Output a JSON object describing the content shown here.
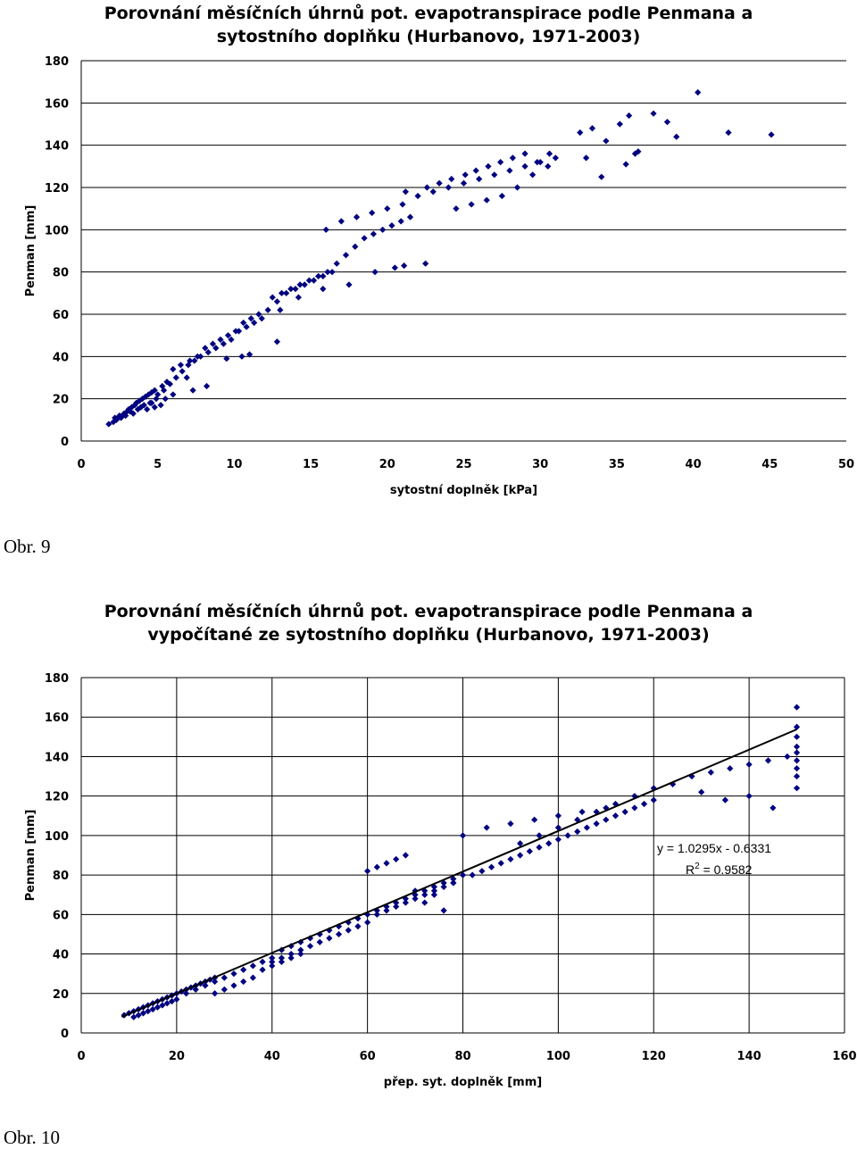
{
  "chart_data": [
    {
      "type": "scatter",
      "title_line1": "Porovnání měsíčních úhrnů pot. evapotranspirace podle Penmana a",
      "title_line2": "sytostního doplňku (Hurbanovo, 1971-2003)",
      "xlabel": "sytostní doplněk [kPa]",
      "ylabel": "Penman [mm]",
      "xlim": [
        0,
        50
      ],
      "ylim": [
        0,
        180
      ],
      "xticks": [
        "0",
        "5",
        "10",
        "15",
        "20",
        "25",
        "30",
        "35",
        "40",
        "45",
        "50"
      ],
      "yticks": [
        "0",
        "20",
        "40",
        "60",
        "80",
        "100",
        "120",
        "140",
        "160",
        "180"
      ],
      "grid": "horizontal",
      "marker_color": "#000080",
      "series": [
        {
          "x": [
            1.8,
            2.1,
            2.3,
            2.5,
            2.6,
            2.8,
            3.0,
            3.1,
            3.3,
            3.5,
            3.6,
            3.8,
            4.0,
            4.2,
            4.4,
            4.6,
            4.8,
            5.0,
            5.3,
            5.6,
            2.2,
            2.7,
            3.2,
            3.7,
            4.1,
            4.5,
            4.9,
            5.4,
            5.8,
            6.2,
            6.6,
            7.0,
            7.4,
            7.8,
            8.3,
            8.8,
            9.3,
            9.8,
            10.3,
            10.8,
            11.3,
            11.8,
            6.0,
            6.5,
            7.1,
            7.6,
            8.1,
            8.6,
            9.1,
            9.6,
            10.1,
            10.6,
            11.1,
            11.6,
            12.2,
            12.8,
            13.4,
            14.0,
            14.6,
            15.2,
            15.8,
            16.4,
            12.5,
            13.1,
            13.7,
            14.3,
            14.9,
            15.5,
            16.1,
            16.7,
            17.3,
            17.9,
            18.5,
            19.1,
            19.7,
            20.3,
            20.9,
            21.5,
            16.0,
            17.0,
            18.0,
            19.0,
            20.0,
            21.0,
            22.0,
            23.0,
            24.0,
            25.0,
            21.2,
            22.6,
            23.4,
            24.2,
            25.1,
            25.8,
            26.6,
            27.4,
            28.2,
            29.0,
            29.8,
            30.6,
            26.0,
            27.0,
            28.0,
            29.0,
            30.0,
            31.0,
            24.5,
            25.5,
            26.5,
            27.5,
            28.5,
            29.5,
            30.5,
            32.6,
            33.4,
            34.3,
            35.2,
            35.8,
            36.2,
            37.4,
            38.3,
            38.9,
            40.3,
            42.3,
            45.1,
            33.0,
            34.0,
            35.6,
            36.4,
            20.5,
            21.1,
            22.5,
            9.5,
            10.5,
            11.0,
            12.8,
            14.2,
            15.8,
            13.0,
            17.5,
            19.2,
            4.3,
            4.8,
            5.2,
            6.9,
            6.0,
            7.3,
            8.2,
            3.4,
            2.9,
            2.4,
            3.9,
            4.6,
            5.5
          ],
          "y": [
            8,
            9,
            10,
            12,
            11,
            13,
            14,
            15,
            16,
            17,
            18,
            19,
            20,
            21,
            22,
            23,
            24,
            22,
            26,
            28,
            11,
            12,
            14,
            15,
            17,
            18,
            20,
            24,
            27,
            30,
            33,
            36,
            38,
            40,
            42,
            44,
            46,
            48,
            52,
            54,
            56,
            58,
            34,
            36,
            38,
            40,
            44,
            46,
            48,
            50,
            52,
            56,
            58,
            60,
            62,
            66,
            70,
            72,
            74,
            76,
            78,
            80,
            68,
            70,
            72,
            74,
            76,
            78,
            80,
            84,
            88,
            92,
            96,
            98,
            100,
            102,
            104,
            106,
            100,
            104,
            106,
            108,
            110,
            112,
            116,
            118,
            120,
            122,
            118,
            120,
            122,
            124,
            126,
            128,
            130,
            132,
            134,
            136,
            132,
            136,
            124,
            126,
            128,
            130,
            132,
            134,
            110,
            112,
            114,
            116,
            120,
            126,
            130,
            146,
            148,
            142,
            150,
            154,
            136,
            155,
            151,
            144,
            165,
            146,
            145,
            134,
            125,
            131,
            137,
            82,
            83,
            84,
            39,
            40,
            41,
            47,
            68,
            72,
            62,
            74,
            80,
            15,
            16,
            17,
            30,
            22,
            24,
            26,
            13,
            12,
            11,
            16,
            18,
            20
          ]
        }
      ]
    },
    {
      "type": "scatter",
      "title_line1": "Porovnání měsíčních úhrnů pot. evapotranspirace podle Penmana  a",
      "title_line2": "vypočítané ze sytostního doplňku (Hurbanovo, 1971-2003)",
      "xlabel": "přep. syt. doplněk [mm]",
      "ylabel": "Penman [mm]",
      "xlim": [
        0,
        160
      ],
      "ylim": [
        0,
        180
      ],
      "xticks": [
        "0",
        "20",
        "40",
        "60",
        "80",
        "100",
        "120",
        "140",
        "160"
      ],
      "yticks": [
        "0",
        "20",
        "40",
        "60",
        "80",
        "100",
        "120",
        "140",
        "160",
        "180"
      ],
      "grid": "both",
      "marker_color": "#000080",
      "trendline": {
        "slope": 1.0295,
        "intercept": -0.6331,
        "x_range": [
          8.5,
          150
        ],
        "color": "#000000"
      },
      "equation": "y = 1.0295x - 0.6331",
      "r2_label": "R",
      "r2_sup": "2",
      "r2_value": " = 0.9582",
      "series": [
        {
          "x": [
            9,
            10,
            11,
            12,
            13,
            14,
            15,
            16,
            17,
            18,
            19,
            20,
            21,
            22,
            23,
            24,
            25,
            26,
            27,
            28,
            11,
            12,
            13,
            14,
            15,
            16,
            17,
            18,
            19,
            20,
            22,
            24,
            26,
            28,
            30,
            32,
            34,
            36,
            38,
            40,
            42,
            44,
            46,
            48,
            50,
            52,
            54,
            56,
            58,
            60,
            62,
            64,
            66,
            68,
            70,
            72,
            74,
            76,
            78,
            80,
            40,
            42,
            44,
            46,
            48,
            50,
            52,
            54,
            56,
            58,
            60,
            62,
            64,
            66,
            68,
            70,
            72,
            74,
            76,
            78,
            82,
            84,
            86,
            88,
            90,
            92,
            94,
            96,
            98,
            100,
            102,
            104,
            106,
            108,
            110,
            112,
            114,
            116,
            118,
            120,
            92,
            96,
            100,
            104,
            108,
            112,
            116,
            120,
            124,
            128,
            132,
            136,
            140,
            144,
            148,
            150,
            150,
            150,
            150,
            150,
            150,
            150,
            150,
            150,
            130,
            135,
            140,
            145,
            80,
            85,
            90,
            95,
            100,
            105,
            110,
            60,
            62,
            64,
            66,
            68,
            70,
            72,
            74,
            76,
            78,
            28,
            30,
            32,
            34,
            36,
            38,
            40,
            42,
            44,
            46
          ],
          "y": [
            9,
            10,
            11,
            12,
            13,
            14,
            15,
            16,
            17,
            18,
            19,
            20,
            21,
            22,
            23,
            24,
            25,
            26,
            27,
            28,
            8,
            9,
            10,
            11,
            12,
            13,
            14,
            15,
            16,
            17,
            20,
            22,
            24,
            26,
            28,
            30,
            32,
            34,
            36,
            38,
            42,
            44,
            46,
            48,
            50,
            52,
            54,
            56,
            58,
            60,
            62,
            64,
            66,
            68,
            70,
            72,
            74,
            76,
            78,
            80,
            36,
            38,
            40,
            42,
            44,
            46,
            48,
            50,
            52,
            54,
            56,
            60,
            62,
            64,
            66,
            68,
            70,
            72,
            74,
            76,
            80,
            82,
            84,
            86,
            88,
            90,
            92,
            94,
            96,
            98,
            100,
            102,
            104,
            106,
            108,
            110,
            112,
            114,
            116,
            118,
            96,
            100,
            104,
            108,
            112,
            116,
            120,
            124,
            126,
            130,
            132,
            134,
            136,
            138,
            140,
            155,
            150,
            145,
            142,
            138,
            134,
            130,
            124,
            165,
            122,
            118,
            120,
            114,
            100,
            104,
            106,
            108,
            110,
            112,
            114,
            82,
            84,
            86,
            88,
            90,
            72,
            66,
            70,
            62,
            76,
            20,
            22,
            24,
            26,
            28,
            32,
            34,
            36,
            38,
            40
          ]
        }
      ]
    }
  ],
  "captions": {
    "fig1": "Obr. 9",
    "fig2": "Obr. 10"
  }
}
